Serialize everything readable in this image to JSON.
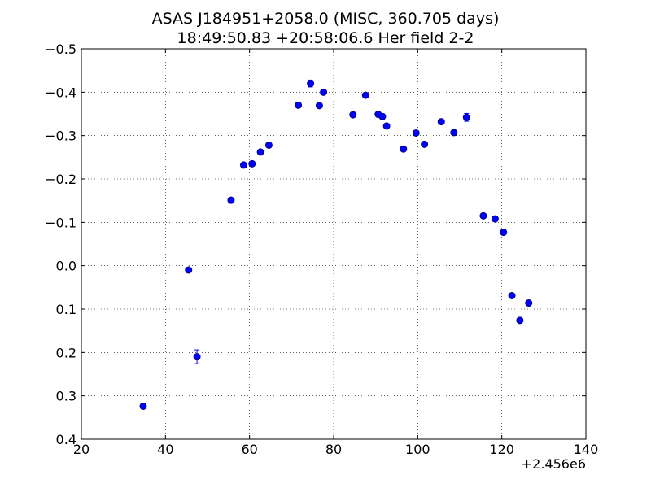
{
  "chart_data": {
    "type": "scatter",
    "title": "ASAS J184951+2058.0 (MISC, 360.705 days)",
    "subtitle": "18:49:50.83 +20:58:06.6 Her field 2-2",
    "x_offset_label": "+2.456e6",
    "xlim": [
      20,
      140
    ],
    "ylim": [
      0.4,
      -0.5
    ],
    "y_inverted": true,
    "grid": true,
    "x_ticks": [
      "20",
      "40",
      "60",
      "80",
      "100",
      "120",
      "140"
    ],
    "y_ticks": [
      "−0.5",
      "−0.4",
      "−0.3",
      "−0.2",
      "−0.1",
      "0.0",
      "0.1",
      "0.2",
      "0.3",
      "0.4"
    ],
    "marker_color": "#0000ff",
    "marker_edge_color": "#00008b",
    "points": [
      {
        "x": 34.7,
        "y": 0.324,
        "err": 0.004
      },
      {
        "x": 45.5,
        "y": 0.01,
        "err": 0.004
      },
      {
        "x": 47.5,
        "y": 0.21,
        "err": 0.016
      },
      {
        "x": 55.6,
        "y": -0.151,
        "err": 0.004
      },
      {
        "x": 58.6,
        "y": -0.232,
        "err": 0.004
      },
      {
        "x": 60.6,
        "y": -0.235,
        "err": 0.004
      },
      {
        "x": 62.6,
        "y": -0.262,
        "err": 0.004
      },
      {
        "x": 64.6,
        "y": -0.278,
        "err": 0.004
      },
      {
        "x": 71.6,
        "y": -0.37,
        "err": 0.004
      },
      {
        "x": 74.5,
        "y": -0.42,
        "err": 0.008
      },
      {
        "x": 76.6,
        "y": -0.369,
        "err": 0.004
      },
      {
        "x": 77.6,
        "y": -0.4,
        "err": 0.004
      },
      {
        "x": 84.6,
        "y": -0.348,
        "err": 0.004
      },
      {
        "x": 87.6,
        "y": -0.393,
        "err": 0.004
      },
      {
        "x": 90.6,
        "y": -0.349,
        "err": 0.004
      },
      {
        "x": 91.6,
        "y": -0.344,
        "err": 0.006
      },
      {
        "x": 92.6,
        "y": -0.322,
        "err": 0.004
      },
      {
        "x": 96.6,
        "y": -0.269,
        "err": 0.004
      },
      {
        "x": 99.6,
        "y": -0.306,
        "err": 0.005
      },
      {
        "x": 101.6,
        "y": -0.28,
        "err": 0.004
      },
      {
        "x": 105.6,
        "y": -0.332,
        "err": 0.004
      },
      {
        "x": 108.6,
        "y": -0.307,
        "err": 0.005
      },
      {
        "x": 111.6,
        "y": -0.342,
        "err": 0.009
      },
      {
        "x": 115.6,
        "y": -0.115,
        "err": 0.004
      },
      {
        "x": 118.4,
        "y": -0.108,
        "err": 0.004
      },
      {
        "x": 120.4,
        "y": -0.077,
        "err": 0.004
      },
      {
        "x": 122.4,
        "y": 0.069,
        "err": 0.004
      },
      {
        "x": 124.3,
        "y": 0.126,
        "err": 0.004
      },
      {
        "x": 126.4,
        "y": 0.086,
        "err": 0.004
      }
    ]
  }
}
